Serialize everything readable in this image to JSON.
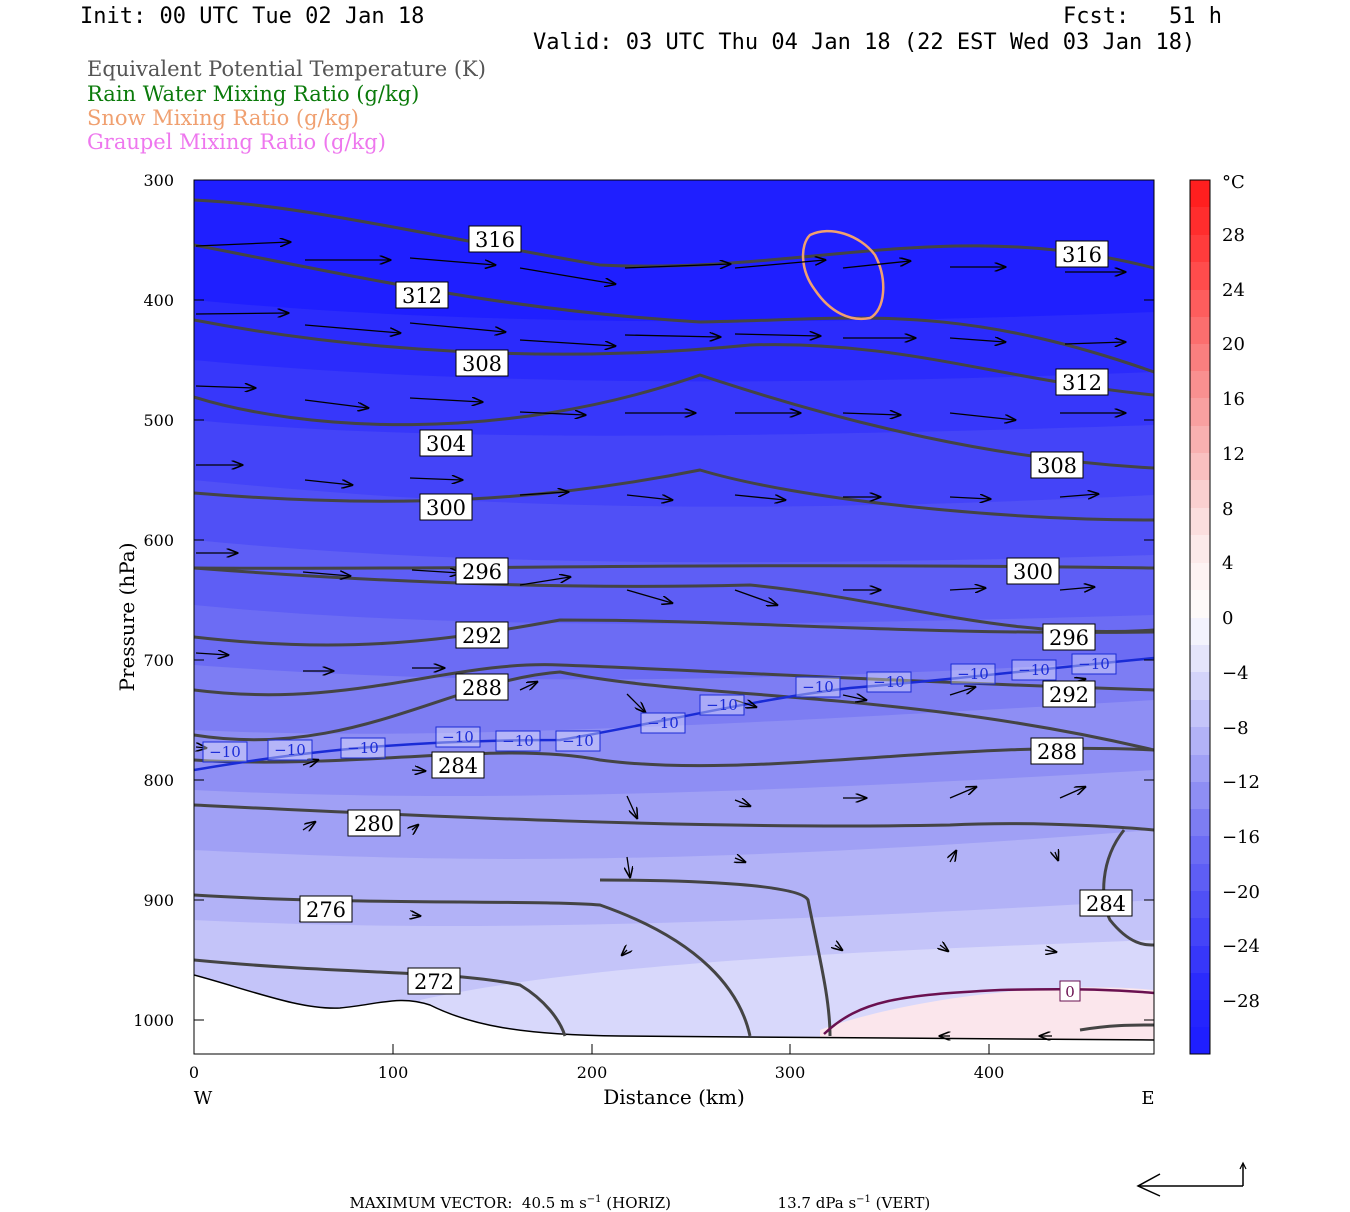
{
  "header": {
    "init": "Init: 00 UTC Tue 02 Jan 18",
    "fcst": "Fcst:   51 h",
    "valid": "Valid: 03 UTC Thu 04 Jan 18 (22 EST Wed 03 Jan 18)"
  },
  "legend": [
    {
      "label": "Equivalent Potential Temperature (K)",
      "color": "#555555"
    },
    {
      "label": "Rain Water Mixing Ratio (g/kg)",
      "color": "#0a7a0a"
    },
    {
      "label": "Snow Mixing Ratio (g/kg)",
      "color": "#f0a070"
    },
    {
      "label": "Graupel Mixing Ratio (g/kg)",
      "color": "#ee77ee"
    }
  ],
  "axes": {
    "xlabel": "Distance (km)",
    "ylabel": "Pressure (hPa)",
    "x_ticks": [
      "0",
      "100",
      "200",
      "300",
      "400"
    ],
    "y_ticks": [
      "300",
      "400",
      "500",
      "600",
      "700",
      "800",
      "900",
      "1000"
    ],
    "west": "W",
    "east": "E"
  },
  "colorbar": {
    "unit": "°C",
    "labels": [
      "28",
      "24",
      "20",
      "16",
      "12",
      "8",
      "4",
      "0",
      "−4",
      "−8",
      "−12",
      "−16",
      "−20",
      "−24",
      "−28"
    ]
  },
  "footer": {
    "max_vector": "MAXIMUM VECTOR:  40.5 m s",
    "horiz": " (HORIZ)",
    "vert_val": "13.7 dPa s",
    "vert": " (VERT)",
    "sup": "−1"
  },
  "chart_data": {
    "type": "contour cross-section",
    "x_range_km": [
      0,
      483
    ],
    "y_range_hpa": [
      300,
      1030
    ],
    "y_scale": "log-pressure (inverted)",
    "theta_e_labels": [
      "316",
      "316",
      "312",
      "312",
      "308",
      "308",
      "304",
      "300",
      "300",
      "296",
      "296",
      "292",
      "292",
      "288",
      "288",
      "284",
      "284",
      "280",
      "276",
      "272"
    ],
    "temperature_contour_labels": [
      "−10",
      "−10",
      "−10",
      "−10",
      "−10",
      "−10",
      "−10",
      "−10",
      "−10",
      "−10",
      "−10",
      "−10",
      "−10",
      "−10"
    ],
    "zero_contour_label": "0",
    "colors": {
      "cold": "#1e1eff",
      "warm": "#ff2020",
      "isotherm_minus10": "#1a2bd6",
      "isotherm_zero": "#6a1050",
      "theta_e": "#444444",
      "snow": "#f0a070"
    }
  }
}
